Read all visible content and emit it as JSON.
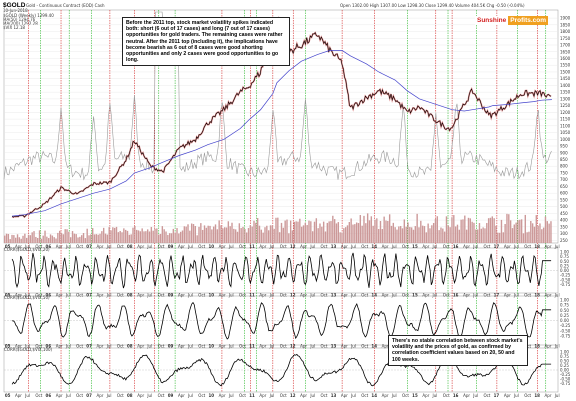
{
  "header": {
    "symbol": "$GOLD",
    "subtitle": "Gold - Continuous Contract (EOD) Cash",
    "date": "10-Jun-2018",
    "stats": "Open 1302.00  High 1307.00  Low 1298.30  Close 1299.40  Volume 404.5K  Chg -0.50 (-0.04%)",
    "legend": [
      "$GOLD (Weekly) 1299.40",
      "MA(50) 1294.76",
      "MA(200) 1292.28",
      "$VIX 12.18"
    ]
  },
  "logo": {
    "part1": "Sunshine",
    "part2": "Profits.com"
  },
  "annotations": {
    "top": "Before the 2011 top, stock market volatility spikes indicated both: short (6 out of 17 cases) and long (7 out of 17 cases) opportunities for gold traders. The remaining cases were rather neutral. After the 2011 top (including it), the implications have become bearish as 6 out of 8 cases were good shorting opportunities and only 2 cases were good opportunities to go long.",
    "bottom": "There's no stable correlation between stock market's volatility and the prices of gold, as confirmed by correlation coefficient values based on 20, 50 and 100 weeks."
  },
  "colors": {
    "gold": "#000000",
    "gold_up": "#d0d0d0",
    "ma": "#4444cc",
    "vix": "#999999",
    "volume": "#cc9999",
    "corr": "#000000",
    "short_line": "#cc0000",
    "long_line": "#00aa00",
    "logo1": "#d42020",
    "logo2": "#f0a020"
  },
  "chart_data": [
    {
      "type": "line",
      "title": "$GOLD Gold - Continuous Contract (EOD) Cash",
      "x": [
        2005.2,
        2005.5,
        2006.0,
        2006.4,
        2006.8,
        2007.2,
        2007.6,
        2008.0,
        2008.2,
        2008.6,
        2008.9,
        2009.3,
        2009.7,
        2010.0,
        2010.4,
        2010.8,
        2011.0,
        2011.3,
        2011.6,
        2011.7,
        2012.0,
        2012.3,
        2012.7,
        2013.0,
        2013.3,
        2013.5,
        2013.9,
        2014.2,
        2014.6,
        2014.9,
        2015.2,
        2015.6,
        2015.9,
        2016.0,
        2016.3,
        2016.5,
        2016.9,
        2017.0,
        2017.4,
        2017.7,
        2018.0,
        2018.2,
        2018.45
      ],
      "series": [
        {
          "name": "$GOLD (Weekly)",
          "values": [
            425,
            430,
            520,
            640,
            590,
            670,
            680,
            850,
            990,
            800,
            760,
            930,
            1000,
            1120,
            1220,
            1350,
            1390,
            1500,
            1800,
            1900,
            1650,
            1700,
            1780,
            1660,
            1570,
            1230,
            1310,
            1360,
            1300,
            1200,
            1240,
            1140,
            1080,
            1090,
            1260,
            1360,
            1180,
            1180,
            1270,
            1340,
            1340,
            1340,
            1299
          ]
        },
        {
          "name": "MA(50)",
          "values": [
            430,
            440,
            470,
            520,
            560,
            600,
            630,
            690,
            750,
            790,
            830,
            880,
            920,
            960,
            1000,
            1080,
            1140,
            1220,
            1340,
            1420,
            1510,
            1580,
            1630,
            1660,
            1660,
            1620,
            1560,
            1500,
            1440,
            1360,
            1300,
            1260,
            1230,
            1220,
            1210,
            1220,
            1240,
            1250,
            1260,
            1270,
            1280,
            1290,
            1295
          ]
        }
      ],
      "ylabel": "",
      "yticks": [
        1900,
        1850,
        1800,
        1750,
        1700,
        1650,
        1600,
        1550,
        1500,
        1450,
        1400,
        1350,
        1300,
        1250,
        1200,
        1150,
        1100,
        1050,
        1000,
        950,
        900,
        850,
        800,
        750,
        700,
        650,
        600,
        550,
        500,
        450,
        400,
        350,
        300,
        250
      ]
    },
    {
      "type": "line",
      "title": "CORR($GOLD,$VIX,20)",
      "x": [
        2005.2,
        2018.45
      ],
      "series": [
        {
          "name": "CORR($GOLD,$VIX,20)",
          "values": [
            -0.3,
            0.53
          ]
        }
      ],
      "ylim": [
        -1,
        1
      ],
      "yticks": [
        "1.00",
        "0.75",
        "0.50",
        "0.25",
        "0.00",
        "-0.25",
        "-0.50",
        "-0.75"
      ]
    },
    {
      "type": "line",
      "title": "CORR($GOLD,$VIX,50)",
      "x": [
        2005.2,
        2018.45
      ],
      "series": [
        {
          "name": "CORR($GOLD,$VIX,50)",
          "values": [
            -0.2,
            0.52
          ]
        }
      ],
      "ylim": [
        -1,
        1
      ],
      "yticks": [
        "1.00",
        "0.75",
        "0.50",
        "0.25",
        "0.00",
        "-0.25",
        "-0.50",
        "-0.75"
      ]
    },
    {
      "type": "line",
      "title": "CORR($GOLD,$VIX,100)",
      "x": [
        2005.2,
        2018.45
      ],
      "series": [
        {
          "name": "CORR($GOLD,$VIX,100)",
          "values": [
            -0.1,
            0.33
          ]
        }
      ],
      "ylim": [
        -1,
        1
      ],
      "yticks": [
        "1.00",
        "0.75",
        "0.50",
        "0.25",
        "0.00",
        "-0.25",
        "-0.50",
        "-0.75"
      ]
    }
  ],
  "x_axis_labels": [
    "05",
    "Apr",
    "Jul",
    "Oct",
    "06",
    "Apr",
    "Jul",
    "Oct",
    "07",
    "Apr",
    "Jul",
    "Oct",
    "08",
    "Apr",
    "Jul",
    "Oct",
    "09",
    "Apr",
    "Jul",
    "Oct",
    "10",
    "Apr",
    "Jul",
    "Oct",
    "11",
    "Apr",
    "Jul",
    "Oct",
    "12",
    "Apr",
    "Jul",
    "Oct",
    "13",
    "Apr",
    "Jul",
    "Oct",
    "14",
    "Apr",
    "Jul",
    "Oct",
    "15",
    "Apr",
    "Jul",
    "Oct",
    "16",
    "Apr",
    "Jul",
    "Oct",
    "17",
    "Apr",
    "Jul",
    "Oct",
    "18",
    "Apr",
    "Jul"
  ],
  "signal_dates": {
    "short": [
      2005.6,
      2006.4,
      2007.6,
      2008.2,
      2008.7,
      2010.35,
      2011.05,
      2011.6,
      2012.1,
      2013.3,
      2014.1,
      2015.6,
      2016.0,
      2017.1,
      2018.1
    ],
    "long": [
      2005.9,
      2006.6,
      2007.15,
      2008.8,
      2009.2,
      2010.9,
      2011.2,
      2012.4,
      2014.9,
      2015.9,
      2016.6,
      2017.6,
      2018.3
    ]
  }
}
